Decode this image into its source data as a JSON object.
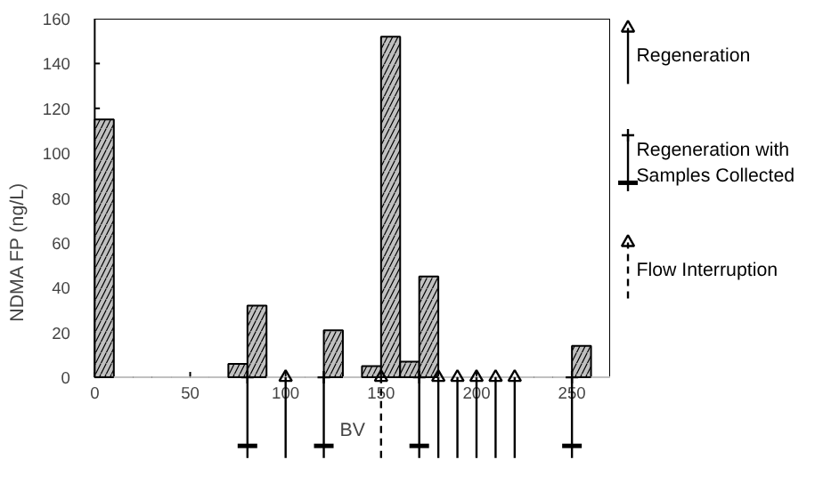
{
  "chart_data": {
    "type": "histogram",
    "xlabel": "BV",
    "ylabel": "NDMA FP (ng/L)",
    "bins": [
      0,
      10,
      20,
      30,
      40,
      50,
      60,
      70,
      80,
      90,
      100,
      110,
      120,
      130,
      140,
      150,
      160,
      170,
      180,
      190,
      200,
      210,
      220,
      230,
      240,
      250,
      260,
      270
    ],
    "values": [
      115,
      0,
      0,
      0,
      0,
      0,
      0,
      6,
      32,
      0,
      0,
      0,
      21,
      0,
      5,
      152,
      7,
      45,
      0,
      0,
      0,
      0,
      0,
      0,
      0,
      14,
      0
    ],
    "color": "#c0c0c0",
    "xlim": [
      0,
      270
    ],
    "ylim": [
      0,
      160
    ],
    "xticks": [
      0,
      50,
      100,
      150,
      200,
      250
    ],
    "yticks": [
      0,
      20,
      40,
      60,
      80,
      100,
      120,
      140,
      160
    ],
    "grid": false,
    "legend": "right",
    "series": [
      {
        "type": "scatter",
        "name": "Regeneration",
        "color": "#000000",
        "x": [
          100,
          180,
          190,
          200,
          210,
          220
        ],
        "values": [
          0,
          0,
          0,
          0,
          0,
          0
        ],
        "line_style": "solid",
        "marker": "triangle"
      },
      {
        "type": "scatter",
        "name": "Regeneration with Samples Collected",
        "color": "#000000",
        "x": [
          80,
          120,
          170,
          250
        ],
        "values": [
          0,
          0,
          0,
          0
        ],
        "line_style": "solid",
        "marker": "cross"
      },
      {
        "type": "scatter",
        "name": "Flow Interruption",
        "color": "#000000",
        "x": [
          150
        ],
        "values": [
          0
        ],
        "line_style": "dashed",
        "marker": "triangle"
      }
    ]
  }
}
